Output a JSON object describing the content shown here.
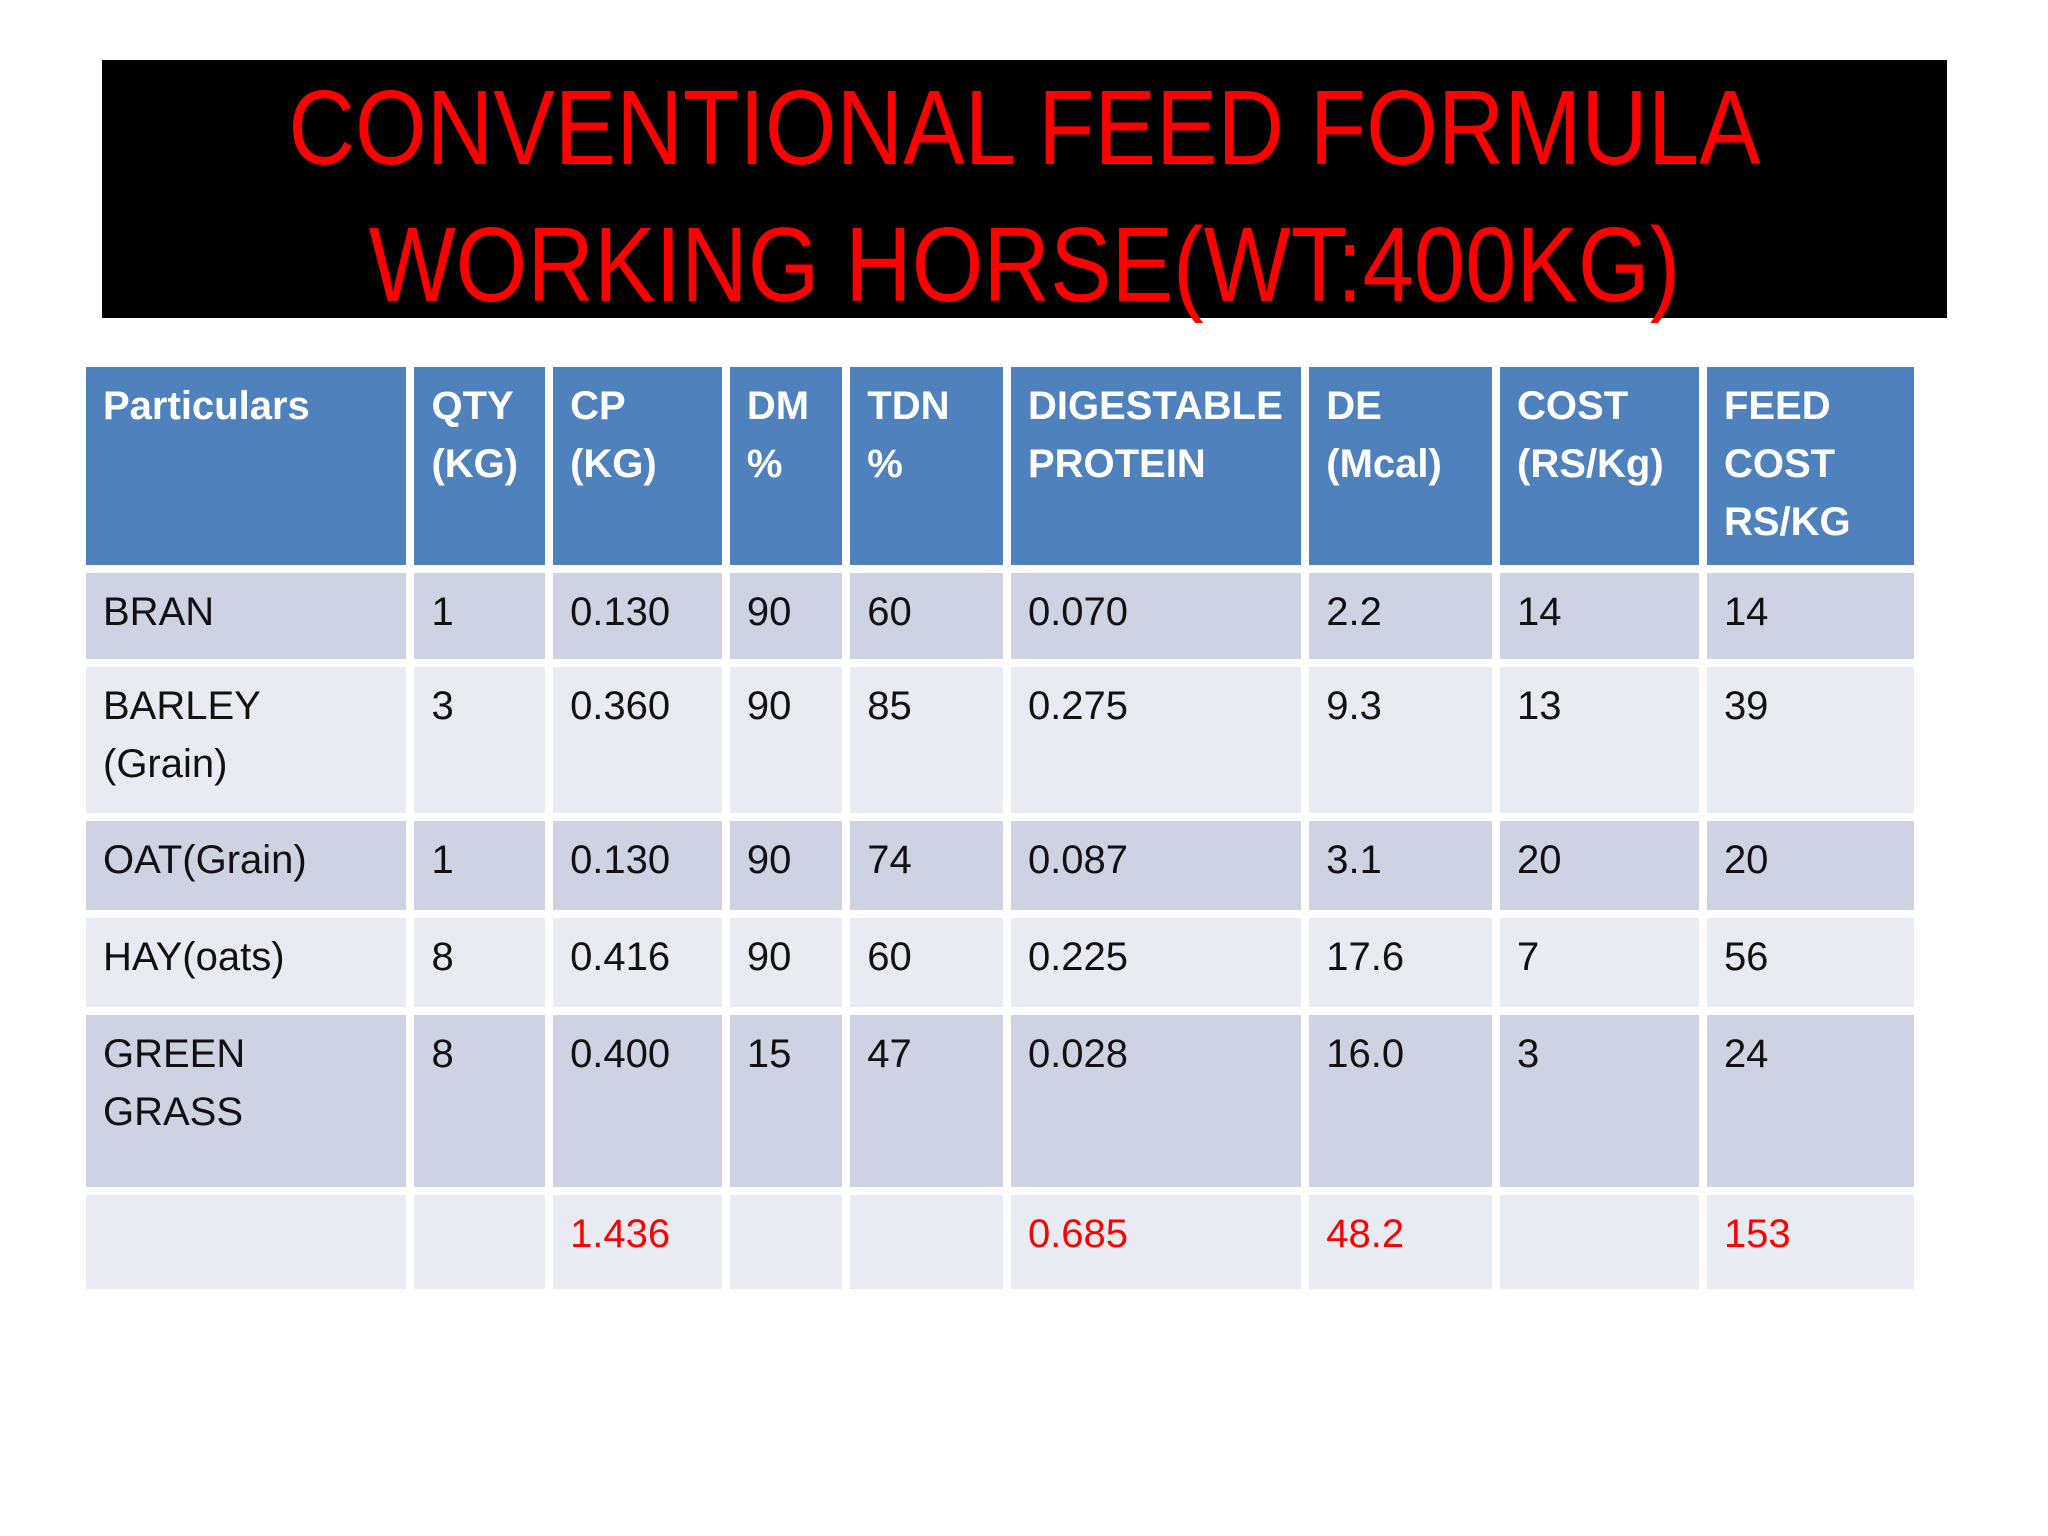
{
  "slide": {
    "background": "#FFFFFF",
    "title": {
      "lines": [
        "CONVENTIONAL FEED FORMULA",
        "WORKING HORSE(WT:400KG)"
      ],
      "text_color": "#FF0000",
      "box_color": "#000000"
    },
    "table": {
      "colors": {
        "header_bg": "#4F81BD",
        "header_text": "#FFFFFF",
        "row_dark": "#CDD3E2",
        "row_light": "#E9EBF2",
        "body_text": "#111111",
        "total_text": "#FF0000",
        "grid": "#FFFFFF"
      },
      "columns": [
        "Particulars",
        "QTY (KG)",
        "CP (KG)",
        "DM %",
        "TDN %",
        "DIGESTABLE PROTEIN",
        "DE (Mcal)",
        "COST (RS/Kg)",
        "FEED COST RS/KG"
      ],
      "rows": [
        {
          "total": false,
          "cells": [
            "BRAN",
            "1",
            "0.130",
            "90",
            "60",
            "0.070",
            "2.2",
            "14",
            "14"
          ]
        },
        {
          "total": false,
          "cells": [
            "BARLEY (Grain)",
            "3",
            "0.360",
            "90",
            "85",
            "0.275",
            "9.3",
            "13",
            "39"
          ]
        },
        {
          "total": false,
          "cells": [
            "OAT(Grain)",
            "1",
            "0.130",
            "90",
            "74",
            "0.087",
            "3.1",
            "20",
            "20"
          ]
        },
        {
          "total": false,
          "cells": [
            "HAY(oats)",
            "8",
            "0.416",
            "90",
            "60",
            "0.225",
            "17.6",
            "7",
            "56"
          ]
        },
        {
          "total": false,
          "cells": [
            "GREEN GRASS",
            "8",
            "0.400",
            "15",
            "47",
            "0.028",
            "16.0",
            "3",
            "24"
          ]
        },
        {
          "total": true,
          "cells": [
            "",
            "",
            "1.436",
            "",
            "",
            "0.685",
            "48.2",
            "",
            "153"
          ]
        }
      ]
    }
  }
}
